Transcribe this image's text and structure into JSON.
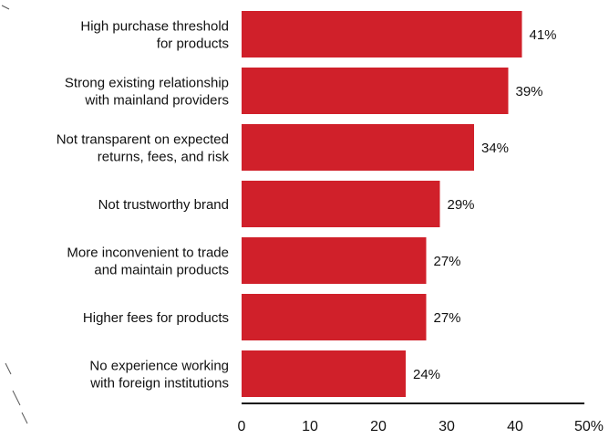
{
  "chart_data": {
    "type": "bar",
    "orientation": "horizontal",
    "categories": [
      [
        "High purchase threshold",
        "for products"
      ],
      [
        "Strong existing relationship",
        "with mainland providers"
      ],
      [
        "Not transparent on expected",
        "returns, fees, and risk"
      ],
      [
        "Not trustworthy brand"
      ],
      [
        "More inconvenient to trade",
        "and maintain products"
      ],
      [
        "Higher fees for products"
      ],
      [
        "No experience working",
        "with foreign institutions"
      ]
    ],
    "values": [
      41,
      39,
      34,
      29,
      27,
      27,
      24
    ],
    "value_labels": [
      "41%",
      "39%",
      "34%",
      "29%",
      "27%",
      "27%",
      "24%"
    ],
    "xlim": [
      0,
      50
    ],
    "x_ticks": [
      0,
      10,
      20,
      30,
      40,
      50
    ],
    "x_tick_labels": [
      "0",
      "10",
      "20",
      "30",
      "40",
      "50%"
    ],
    "bar_color": "#d0202a",
    "axis_color": "#111111",
    "grid": false,
    "legend": "none"
  }
}
